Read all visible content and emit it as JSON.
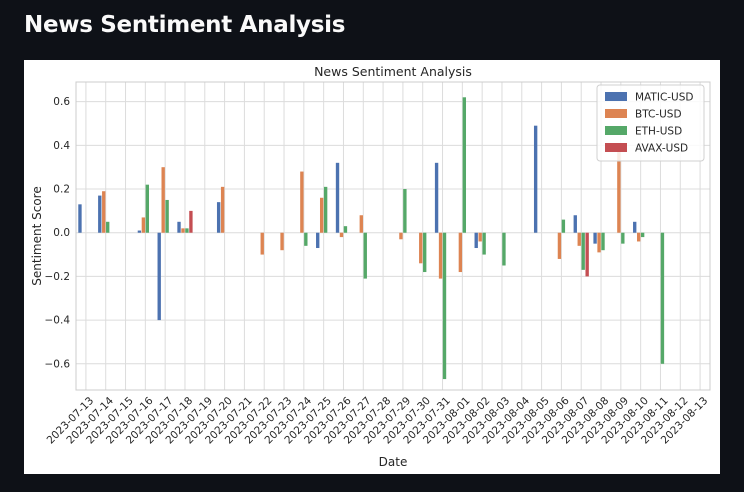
{
  "page": {
    "title": "News Sentiment Analysis"
  },
  "chart_data": {
    "type": "bar",
    "title": "News Sentiment Analysis",
    "xlabel": "Date",
    "ylabel": "Sentiment Score",
    "ylim": [
      -0.72,
      0.69
    ],
    "yticks": [
      -0.6,
      -0.4,
      -0.2,
      0.0,
      0.2,
      0.4,
      0.6
    ],
    "ytick_labels": [
      "−0.6",
      "−0.4",
      "−0.2",
      "0.0",
      "0.2",
      "0.4",
      "0.6"
    ],
    "grid": true,
    "legend_position": "top-right",
    "categories": [
      "2023-07-13",
      "2023-07-14",
      "2023-07-15",
      "2023-07-16",
      "2023-07-17",
      "2023-07-18",
      "2023-07-19",
      "2023-07-20",
      "2023-07-21",
      "2023-07-22",
      "2023-07-23",
      "2023-07-24",
      "2023-07-25",
      "2023-07-26",
      "2023-07-27",
      "2023-07-28",
      "2023-07-29",
      "2023-07-30",
      "2023-07-31",
      "2023-08-01",
      "2023-08-02",
      "2023-08-03",
      "2023-08-04",
      "2023-08-05",
      "2023-08-06",
      "2023-08-07",
      "2023-08-08",
      "2023-08-09",
      "2023-08-10",
      "2023-08-11",
      "2023-08-12",
      "2023-08-13"
    ],
    "series": [
      {
        "name": "MATIC-USD",
        "color": "#4c72b0",
        "values": [
          0.13,
          0.17,
          null,
          0.01,
          -0.4,
          0.05,
          null,
          0.14,
          null,
          null,
          null,
          null,
          -0.07,
          0.32,
          null,
          null,
          null,
          null,
          0.32,
          null,
          -0.07,
          null,
          null,
          0.49,
          null,
          0.08,
          -0.05,
          null,
          0.05,
          null,
          null,
          null
        ]
      },
      {
        "name": "BTC-USD",
        "color": "#dd8452",
        "values": [
          null,
          0.19,
          null,
          0.07,
          0.3,
          0.02,
          null,
          0.21,
          null,
          -0.1,
          -0.08,
          0.28,
          0.16,
          -0.02,
          0.08,
          null,
          -0.03,
          -0.14,
          -0.21,
          -0.18,
          -0.04,
          null,
          null,
          null,
          -0.12,
          -0.06,
          -0.09,
          0.37,
          -0.04,
          null,
          null,
          null
        ]
      },
      {
        "name": "ETH-USD",
        "color": "#55a868",
        "values": [
          null,
          0.05,
          null,
          0.22,
          0.15,
          0.02,
          null,
          null,
          null,
          null,
          null,
          -0.06,
          0.21,
          0.03,
          -0.21,
          null,
          0.2,
          -0.18,
          -0.67,
          0.62,
          -0.1,
          -0.15,
          null,
          null,
          0.06,
          -0.17,
          -0.08,
          -0.05,
          -0.02,
          -0.6,
          null,
          null
        ]
      },
      {
        "name": "AVAX-USD",
        "color": "#c44e52",
        "values": [
          null,
          null,
          null,
          null,
          null,
          0.1,
          null,
          null,
          null,
          null,
          null,
          null,
          null,
          null,
          null,
          null,
          null,
          null,
          null,
          null,
          null,
          null,
          null,
          null,
          null,
          -0.2,
          null,
          null,
          null,
          null,
          null,
          null
        ]
      }
    ]
  }
}
